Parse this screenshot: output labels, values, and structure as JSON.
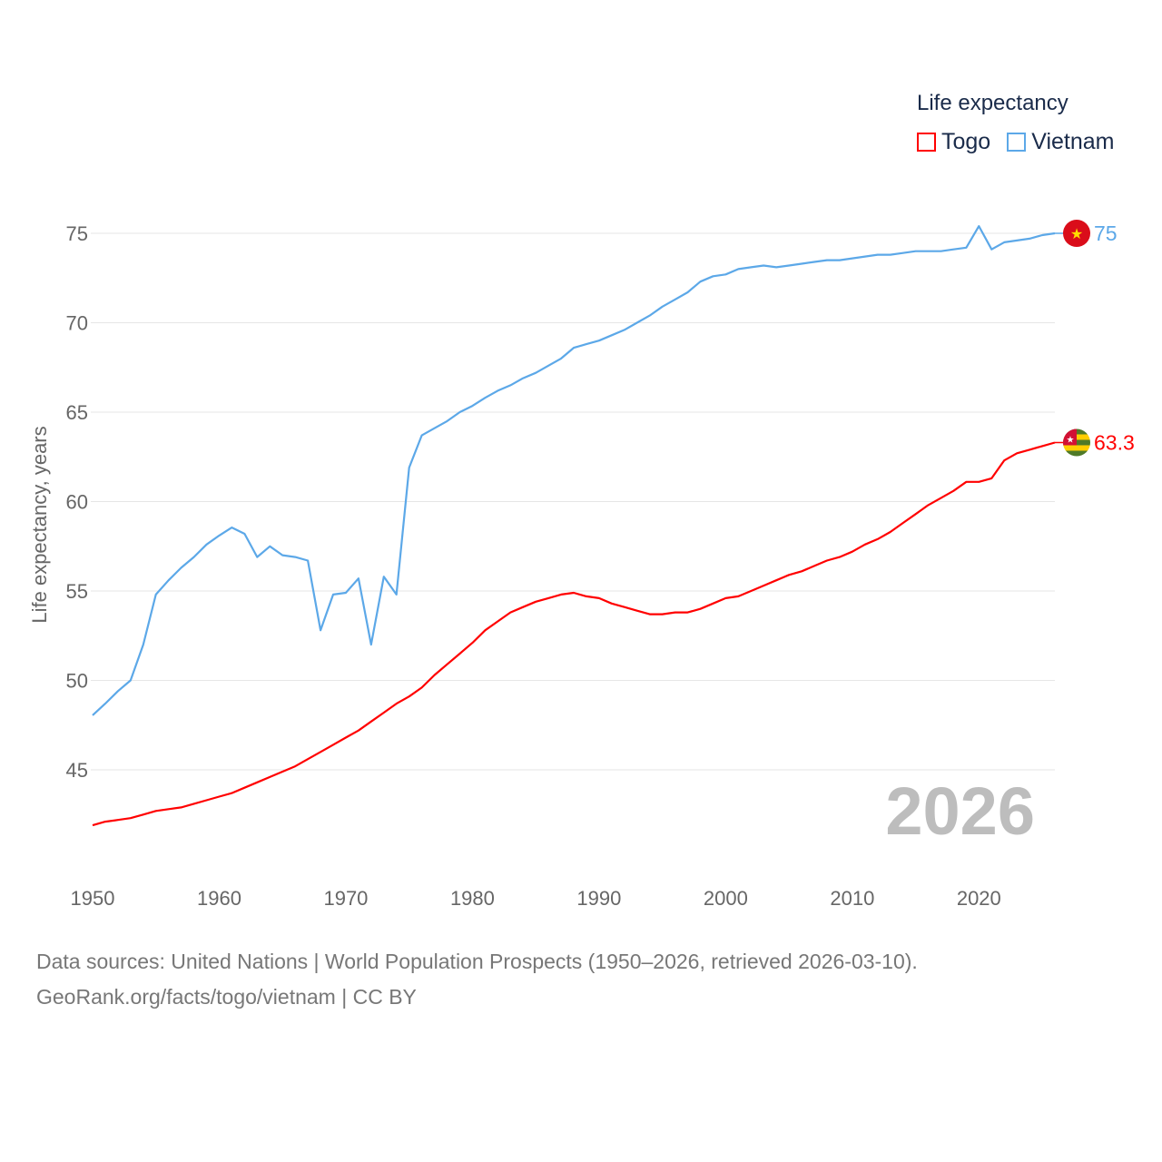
{
  "chart_data": {
    "type": "line",
    "title": "",
    "xlabel": "",
    "ylabel": "Life expectancy, years",
    "xlim": [
      1950,
      2026
    ],
    "ylim": [
      40,
      77
    ],
    "xticks": [
      1950,
      1960,
      1970,
      1980,
      1990,
      2000,
      2010,
      2020
    ],
    "yticks": [
      45,
      50,
      55,
      60,
      65,
      70,
      75
    ],
    "grid": true,
    "legend": {
      "title": "Life expectancy",
      "placement": "top-right"
    },
    "year_label": "2026",
    "x": [
      1950,
      1951,
      1952,
      1953,
      1954,
      1955,
      1956,
      1957,
      1958,
      1959,
      1960,
      1961,
      1962,
      1963,
      1964,
      1965,
      1966,
      1967,
      1968,
      1969,
      1970,
      1971,
      1972,
      1973,
      1974,
      1975,
      1976,
      1977,
      1978,
      1979,
      1980,
      1981,
      1982,
      1983,
      1984,
      1985,
      1986,
      1987,
      1988,
      1989,
      1990,
      1991,
      1992,
      1993,
      1994,
      1995,
      1996,
      1997,
      1998,
      1999,
      2000,
      2001,
      2002,
      2003,
      2004,
      2005,
      2006,
      2007,
      2008,
      2009,
      2010,
      2011,
      2012,
      2013,
      2014,
      2015,
      2016,
      2017,
      2018,
      2019,
      2020,
      2021,
      2022,
      2023,
      2024,
      2025,
      2026
    ],
    "series": [
      {
        "name": "Togo",
        "color": "#ff0000",
        "end_label": "63.3",
        "values": [
          41.9,
          42.1,
          42.2,
          42.3,
          42.5,
          42.7,
          42.8,
          42.9,
          43.1,
          43.3,
          43.5,
          43.7,
          44.0,
          44.3,
          44.6,
          44.9,
          45.2,
          45.6,
          46.0,
          46.4,
          46.8,
          47.2,
          47.7,
          48.2,
          48.7,
          49.1,
          49.6,
          50.3,
          50.9,
          51.5,
          52.1,
          52.8,
          53.3,
          53.8,
          54.1,
          54.4,
          54.6,
          54.8,
          54.9,
          54.7,
          54.6,
          54.3,
          54.1,
          53.9,
          53.7,
          53.7,
          53.8,
          53.8,
          54.0,
          54.3,
          54.6,
          54.7,
          55.0,
          55.3,
          55.6,
          55.9,
          56.1,
          56.4,
          56.7,
          56.9,
          57.2,
          57.6,
          57.9,
          58.3,
          58.8,
          59.3,
          59.8,
          60.2,
          60.6,
          61.1,
          61.1,
          61.3,
          62.3,
          62.7,
          62.9,
          63.1,
          63.3
        ]
      },
      {
        "name": "Vietnam",
        "color": "#5ca8e8",
        "end_label": "75",
        "values": [
          48.05,
          48.7,
          49.4,
          50.0,
          52.0,
          54.8,
          55.6,
          56.3,
          56.9,
          57.6,
          58.1,
          58.55,
          58.2,
          56.9,
          57.5,
          57.0,
          56.9,
          56.7,
          52.8,
          54.8,
          54.9,
          55.7,
          52.0,
          55.8,
          54.8,
          61.9,
          63.7,
          64.1,
          64.5,
          65.0,
          65.35,
          65.8,
          66.2,
          66.5,
          66.9,
          67.2,
          67.6,
          68.0,
          68.6,
          68.8,
          69.0,
          69.3,
          69.6,
          70.0,
          70.4,
          70.9,
          71.3,
          71.7,
          72.3,
          72.6,
          72.7,
          73.0,
          73.1,
          73.2,
          73.1,
          73.2,
          73.3,
          73.4,
          73.5,
          73.5,
          73.6,
          73.7,
          73.8,
          73.8,
          73.9,
          74.0,
          74.0,
          74.0,
          74.1,
          74.2,
          75.4,
          74.1,
          74.5,
          74.6,
          74.7,
          74.9,
          75.0
        ]
      }
    ]
  },
  "footer": {
    "sources": "Data sources: United Nations | World Population Prospects (1950–2026, retrieved 2026-03-10).",
    "credit": "GeoRank.org/facts/togo/vietnam | CC BY"
  }
}
